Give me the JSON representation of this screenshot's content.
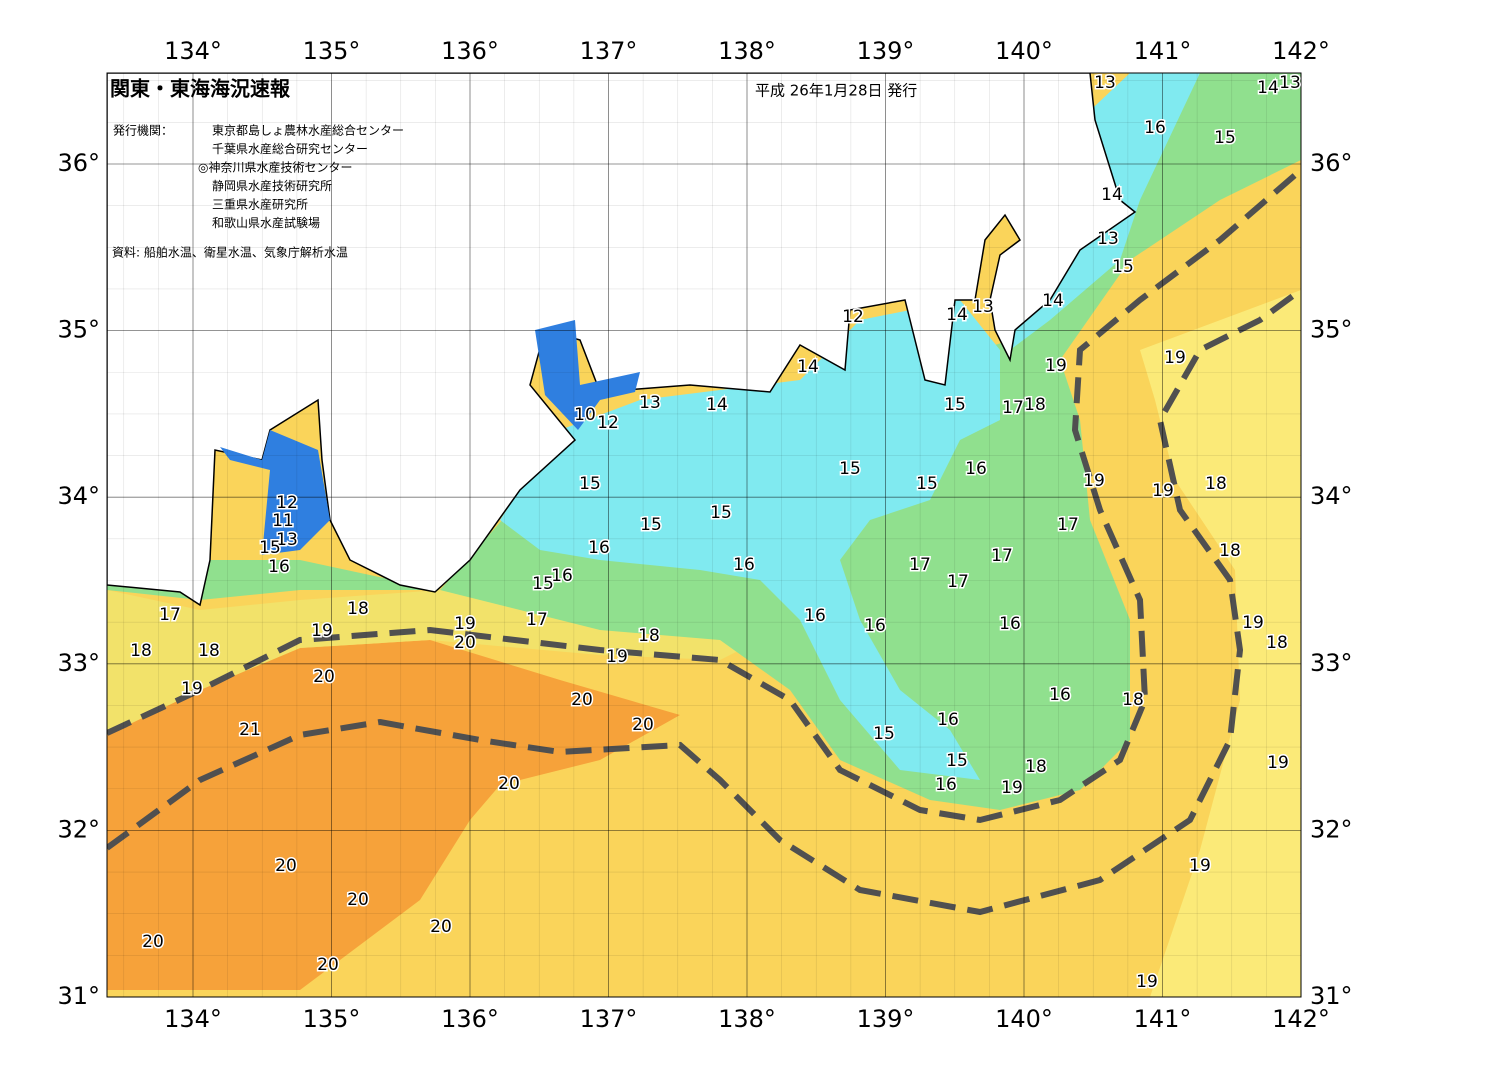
{
  "header": {
    "title": "関東・東海海況速報",
    "date": "平成 26年1月28日 発行",
    "agency_label": "発行機関：",
    "agencies": [
      "東京都島しょ農林水産総合センター",
      "千葉県水産総合研究センター",
      "◎神奈川県水産技術センター",
      "静岡県水産技術研究所",
      "三重県水産研究所",
      "和歌山県水産試験場"
    ],
    "source": "資料: 船舶水温、衛星水温、気象庁解析水温"
  },
  "map_data": {
    "lon_ticks": [
      {
        "value": 134,
        "label": "134°"
      },
      {
        "value": 135,
        "label": "135°"
      },
      {
        "value": 136,
        "label": "136°"
      },
      {
        "value": 137,
        "label": "137°"
      },
      {
        "value": 138,
        "label": "138°"
      },
      {
        "value": 139,
        "label": "139°"
      },
      {
        "value": 140,
        "label": "140°"
      },
      {
        "value": 141,
        "label": "141°"
      },
      {
        "value": 142,
        "label": "142°"
      }
    ],
    "lat_ticks": [
      {
        "value": 36,
        "label": "36°"
      },
      {
        "value": 35,
        "label": "35°"
      },
      {
        "value": 34,
        "label": "34°"
      },
      {
        "value": 33,
        "label": "33°"
      },
      {
        "value": 32,
        "label": "32°"
      },
      {
        "value": 31,
        "label": "31°"
      }
    ],
    "contour_labels": [
      13,
      14,
      13,
      16,
      15,
      14,
      13,
      15,
      14,
      12,
      14,
      13,
      19,
      19,
      14,
      13,
      14,
      10,
      12,
      15,
      17,
      18,
      16,
      15,
      15,
      19,
      19,
      18,
      15,
      15,
      15,
      17,
      12,
      11,
      13,
      15,
      16,
      17,
      18,
      17,
      17,
      16,
      16,
      15,
      16,
      17,
      18,
      19,
      20,
      17,
      16,
      16,
      16,
      19,
      18,
      19,
      18,
      18,
      18,
      19,
      20,
      19,
      16,
      18,
      20,
      20,
      21,
      16,
      15,
      15,
      19,
      18,
      16,
      19,
      20,
      19,
      20,
      20,
      20,
      20,
      20,
      19
    ]
  }
}
